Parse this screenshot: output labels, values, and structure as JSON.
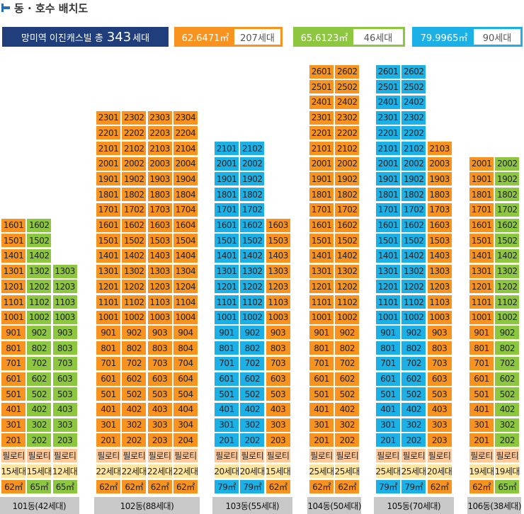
{
  "header": {
    "title": "동 · 호수 배치도"
  },
  "summary": {
    "label": "망미역 이진캐스빌 총",
    "count": "343",
    "suffix": "세대"
  },
  "legend": [
    {
      "area": "62.6471㎡",
      "count": "207세대",
      "color": "#f7931e"
    },
    {
      "area": "65.6123㎡",
      "count": "46세대",
      "color": "#8dc63f"
    },
    {
      "area": "79.9965㎡",
      "count": "90세대",
      "color": "#1bb1e7"
    }
  ],
  "colors": {
    "orange": "#f7931e",
    "green": "#8dc63f",
    "blue": "#1bb1e7",
    "piloti": "#ffc896",
    "count_row": "#ffe6a0",
    "bottom_bar": "#c8c8c8"
  },
  "chart_data": {
    "type": "table",
    "piloti_label": "필로티",
    "buildings": [
      {
        "name": "101동(42세대)",
        "lines": [
          {
            "type": "62㎡",
            "floors": 16,
            "count": "15세대",
            "color": "orange"
          },
          {
            "type": "65㎡",
            "floors": 16,
            "count": "15세대",
            "color": "green"
          },
          {
            "type": "65㎡",
            "floors": 13,
            "count": "12세대",
            "color": "green"
          }
        ]
      },
      {
        "name": "102동(88세대)",
        "lines": [
          {
            "type": "62㎡",
            "floors": 23,
            "count": "22세대",
            "color": "orange"
          },
          {
            "type": "62㎡",
            "floors": 23,
            "count": "22세대",
            "color": "orange"
          },
          {
            "type": "62㎡",
            "floors": 23,
            "count": "22세대",
            "color": "orange"
          },
          {
            "type": "62㎡",
            "floors": 23,
            "count": "22세대",
            "color": "orange"
          }
        ]
      },
      {
        "name": "103동(55세대)",
        "lines": [
          {
            "type": "79㎡",
            "floors": 21,
            "count": "20세대",
            "color": "blue"
          },
          {
            "type": "79㎡",
            "floors": 21,
            "count": "20세대",
            "color": "blue"
          },
          {
            "type": "62㎡",
            "floors": 16,
            "count": "15세대",
            "color": "orange"
          }
        ]
      },
      {
        "name": "104동(50세대)",
        "lines": [
          {
            "type": "62㎡",
            "floors": 26,
            "count": "25세대",
            "color": "orange"
          },
          {
            "type": "62㎡",
            "floors": 26,
            "count": "25세대",
            "color": "orange"
          }
        ]
      },
      {
        "name": "105동(70세대)",
        "lines": [
          {
            "type": "79㎡",
            "floors": 26,
            "count": "25세대",
            "color": "blue"
          },
          {
            "type": "79㎡",
            "floors": 26,
            "count": "25세대",
            "color": "blue"
          },
          {
            "type": "62㎡",
            "floors": 21,
            "count": "20세대",
            "color": "orange"
          }
        ]
      },
      {
        "name": "106동(38세대)",
        "lines": [
          {
            "type": "62㎡",
            "floors": 20,
            "count": "19세대",
            "color": "orange"
          },
          {
            "type": "65㎡",
            "floors": 20,
            "count": "19세대",
            "color": "green"
          }
        ]
      }
    ]
  }
}
